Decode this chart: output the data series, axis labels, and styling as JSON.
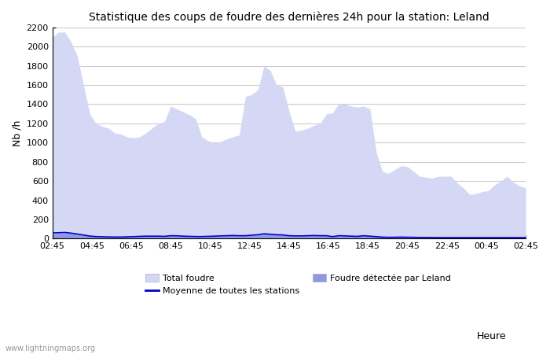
{
  "title": "Statistique des coups de foudre des dernières 24h pour la station: Leland",
  "ylabel": "Nb /h",
  "xlabel": "Heure",
  "watermark": "www.lightningmaps.org",
  "background_color": "#ffffff",
  "plot_background": "#ffffff",
  "grid_color": "#cccccc",
  "x_labels": [
    "02:45",
    "04:45",
    "06:45",
    "08:45",
    "10:45",
    "12:45",
    "14:45",
    "16:45",
    "18:45",
    "20:45",
    "22:45",
    "00:45",
    "02:45"
  ],
  "ylim": [
    0,
    2200
  ],
  "yticks": [
    0,
    200,
    400,
    600,
    800,
    1000,
    1200,
    1400,
    1600,
    1800,
    2000,
    2200
  ],
  "total_foudre_color": "#d4d8f5",
  "local_foudre_color": "#9098e0",
  "moyenne_color": "#0000cc",
  "total_foudre_values": [
    2100,
    2150,
    2150,
    2050,
    1900,
    1600,
    1300,
    1200,
    1170,
    1150,
    1100,
    1090,
    1060,
    1050,
    1060,
    1100,
    1150,
    1200,
    1220,
    1380,
    1350,
    1320,
    1290,
    1250,
    1060,
    1020,
    1000,
    1010,
    1040,
    1060,
    1080,
    1480,
    1500,
    1550,
    1800,
    1750,
    1600,
    1580,
    1330,
    1120,
    1130,
    1150,
    1180,
    1200,
    1300,
    1310,
    1410,
    1400,
    1380,
    1370,
    1380,
    1350,
    900,
    700,
    680,
    720,
    760,
    750,
    700,
    650,
    640,
    630,
    650,
    650,
    650,
    580,
    530,
    460,
    470,
    490,
    500,
    560,
    600,
    650,
    590,
    550,
    530
  ],
  "local_foudre_values": [
    50,
    55,
    60,
    55,
    45,
    35,
    25,
    20,
    18,
    16,
    15,
    15,
    18,
    20,
    22,
    25,
    25,
    25,
    22,
    30,
    28,
    25,
    22,
    20,
    20,
    22,
    25,
    28,
    30,
    32,
    30,
    30,
    35,
    40,
    50,
    45,
    40,
    38,
    30,
    28,
    28,
    30,
    32,
    30,
    30,
    20,
    30,
    28,
    25,
    22,
    30,
    25,
    20,
    15,
    13,
    14,
    15,
    14,
    13,
    12,
    12,
    11,
    10,
    10,
    10,
    10,
    10,
    10,
    10,
    10,
    10,
    10,
    10,
    10,
    10,
    10,
    10
  ],
  "moyenne_values": [
    60,
    62,
    65,
    58,
    48,
    38,
    27,
    22,
    20,
    18,
    17,
    17,
    19,
    21,
    24,
    26,
    26,
    26,
    24,
    31,
    30,
    26,
    24,
    22,
    22,
    24,
    26,
    29,
    31,
    33,
    31,
    31,
    36,
    41,
    51,
    46,
    41,
    39,
    31,
    29,
    29,
    31,
    33,
    31,
    31,
    21,
    31,
    29,
    26,
    24,
    31,
    26,
    21,
    16,
    14,
    15,
    16,
    15,
    14,
    13,
    13,
    12,
    11,
    11,
    11,
    11,
    11,
    11,
    11,
    11,
    11,
    11,
    11,
    11,
    11,
    11,
    11
  ]
}
